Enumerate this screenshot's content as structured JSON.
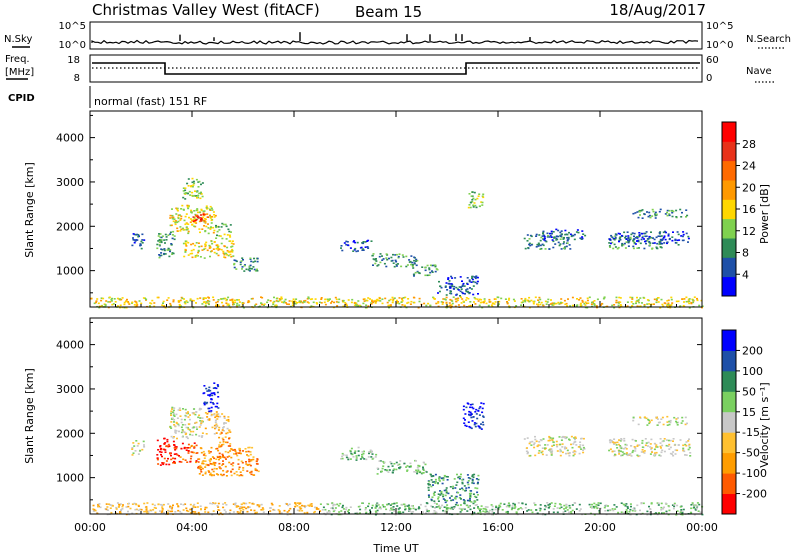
{
  "header": {
    "title": "Christmas Valley West (fitACF)",
    "beam": "Beam 15",
    "date": "18/Aug/2017"
  },
  "small_panels": {
    "nsky_label": "N.Sky",
    "nsky_top": "10^5",
    "nsky_bottom": "10^0",
    "nsearch_label": "N.Search",
    "nsearch_top": "10^5",
    "nsearch_bottom": "10^0",
    "freq_label_1": "Freq.",
    "freq_label_2": "[MHz]",
    "freq_top": "18",
    "freq_bottom": "8",
    "nave_label": "Nave",
    "nave_top": "60",
    "nave_bottom": "0",
    "cpid_label": "CPID",
    "cpid_text": "normal (fast) 151 RF"
  },
  "colors": {
    "power": [
      "#0000ff",
      "#1e50a8",
      "#2e8b57",
      "#7fd14f",
      "#ffd700",
      "#ff9900",
      "#ff6a00",
      "#e8321a",
      "#ff0000"
    ],
    "velocity": [
      "#ff0000",
      "#ff5a00",
      "#ff9d00",
      "#ffc030",
      "#c8c8c8",
      "#7ad060",
      "#2e8b57",
      "#1e50a8",
      "#0000ff"
    ]
  },
  "chart_data": [
    {
      "type": "heatmap",
      "name": "power",
      "ylabel": "Slant Range [km]",
      "xlabel": "Time UT",
      "x_ticks": [
        "00:00",
        "04:00",
        "08:00",
        "12:00",
        "16:00",
        "20:00",
        "00:00"
      ],
      "x_range_hours": [
        0,
        24
      ],
      "y_ticks": [
        1000,
        2000,
        3000,
        4000
      ],
      "ylim": [
        180,
        4600
      ],
      "colorbar_label": "Power [dB]",
      "colorbar_ticks": [
        "4",
        "8",
        "12",
        "16",
        "20",
        "24",
        "28"
      ],
      "regions": [
        {
          "t0": 1.6,
          "t1": 2.1,
          "r0": 1500,
          "r1": 1850,
          "val": 1
        },
        {
          "t0": 2.6,
          "t1": 3.3,
          "r0": 1300,
          "r1": 1900,
          "val": 2
        },
        {
          "t0": 3.1,
          "t1": 4.9,
          "r0": 1850,
          "r1": 2500,
          "val": 4
        },
        {
          "t0": 3.6,
          "t1": 4.4,
          "r0": 2600,
          "r1": 3100,
          "val": 3
        },
        {
          "t0": 4.0,
          "t1": 4.6,
          "r0": 2100,
          "r1": 2350,
          "val": 7
        },
        {
          "t0": 3.6,
          "t1": 5.6,
          "r0": 1300,
          "r1": 1700,
          "val": 4
        },
        {
          "t0": 4.9,
          "t1": 5.5,
          "r0": 1700,
          "r1": 2100,
          "val": 3
        },
        {
          "t0": 5.6,
          "t1": 6.6,
          "r0": 1000,
          "r1": 1300,
          "val": 2
        },
        {
          "t0": 9.8,
          "t1": 11.0,
          "r0": 1450,
          "r1": 1700,
          "val": 1
        },
        {
          "t0": 11.0,
          "t1": 12.8,
          "r0": 1100,
          "r1": 1400,
          "val": 2
        },
        {
          "t0": 12.6,
          "t1": 13.6,
          "r0": 900,
          "r1": 1150,
          "val": 2
        },
        {
          "t0": 13.6,
          "t1": 15.2,
          "r0": 450,
          "r1": 900,
          "val": 1
        },
        {
          "t0": 14.8,
          "t1": 15.4,
          "r0": 2400,
          "r1": 2800,
          "val": 3
        },
        {
          "t0": 17.0,
          "t1": 18.8,
          "r0": 1500,
          "r1": 1850,
          "val": 2
        },
        {
          "t0": 17.6,
          "t1": 19.4,
          "r0": 1700,
          "r1": 1950,
          "val": 1
        },
        {
          "t0": 20.3,
          "t1": 22.5,
          "r0": 1500,
          "r1": 1800,
          "val": 2
        },
        {
          "t0": 20.3,
          "t1": 23.5,
          "r0": 1600,
          "r1": 1900,
          "val": 1
        },
        {
          "t0": 21.2,
          "t1": 23.4,
          "r0": 2200,
          "r1": 2400,
          "val": 2
        },
        {
          "t0": 0.0,
          "t1": 24.0,
          "r0": 180,
          "r1": 420,
          "val": 4
        }
      ]
    },
    {
      "type": "heatmap",
      "name": "velocity",
      "ylabel": "Slant Range [km]",
      "xlabel": "Time UT",
      "x_ticks": [
        "00:00",
        "04:00",
        "08:00",
        "12:00",
        "16:00",
        "20:00",
        "00:00"
      ],
      "x_range_hours": [
        0,
        24
      ],
      "y_ticks": [
        1000,
        2000,
        3000,
        4000
      ],
      "ylim": [
        180,
        4600
      ],
      "colorbar_label": "Velocity [m s⁻¹]",
      "colorbar_ticks": [
        "-200",
        "-100",
        "-50",
        "-15",
        "15",
        "50",
        "100",
        "200"
      ],
      "regions": [
        {
          "t0": 1.6,
          "t1": 2.1,
          "r0": 1500,
          "r1": 1850,
          "val": 4
        },
        {
          "t0": 2.6,
          "t1": 3.4,
          "r0": 1300,
          "r1": 1900,
          "val": 0
        },
        {
          "t0": 3.4,
          "t1": 4.2,
          "r0": 1350,
          "r1": 1800,
          "val": 1
        },
        {
          "t0": 4.2,
          "t1": 6.6,
          "r0": 1050,
          "r1": 1700,
          "val": 2
        },
        {
          "t0": 3.1,
          "t1": 4.4,
          "r0": 1900,
          "r1": 2600,
          "val": 4
        },
        {
          "t0": 4.5,
          "t1": 5.4,
          "r0": 2000,
          "r1": 2500,
          "val": 3
        },
        {
          "t0": 4.4,
          "t1": 5.0,
          "r0": 2500,
          "r1": 3200,
          "val": 8
        },
        {
          "t0": 5.0,
          "t1": 5.5,
          "r0": 1700,
          "r1": 2100,
          "val": 2
        },
        {
          "t0": 9.8,
          "t1": 11.2,
          "r0": 1400,
          "r1": 1700,
          "val": 5
        },
        {
          "t0": 11.2,
          "t1": 13.2,
          "r0": 1100,
          "r1": 1400,
          "val": 5
        },
        {
          "t0": 13.2,
          "t1": 15.2,
          "r0": 450,
          "r1": 1100,
          "val": 6
        },
        {
          "t0": 14.6,
          "t1": 15.4,
          "r0": 2100,
          "r1": 2700,
          "val": 8
        },
        {
          "t0": 17.0,
          "t1": 19.4,
          "r0": 1500,
          "r1": 1950,
          "val": 4
        },
        {
          "t0": 20.3,
          "t1": 23.5,
          "r0": 1500,
          "r1": 1900,
          "val": 4
        },
        {
          "t0": 21.2,
          "t1": 23.4,
          "r0": 2200,
          "r1": 2400,
          "val": 4
        },
        {
          "t0": 0.0,
          "t1": 9.0,
          "r0": 180,
          "r1": 450,
          "val": 3
        },
        {
          "t0": 9.0,
          "t1": 24.0,
          "r0": 180,
          "r1": 450,
          "val": 5
        }
      ]
    }
  ]
}
